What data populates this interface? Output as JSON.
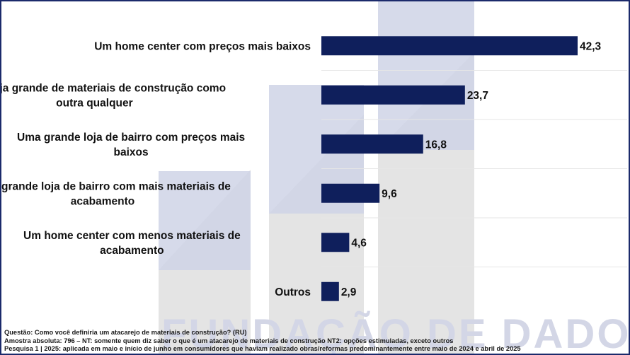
{
  "chart_data": {
    "type": "bar",
    "orientation": "horizontal",
    "categories": [
      "Um home center com preços mais baixos",
      "Uma loja grande de materiais de construção como outra qualquer",
      "Uma grande loja de bairro com preços mais baixos",
      "Uma grande loja de bairro com mais materiais de acabamento",
      "Um home center com menos materiais de acabamento",
      "Outros"
    ],
    "category_lines": [
      [
        "Um home center com preços mais baixos"
      ],
      [
        "Uma loja grande de materiais de construção como",
        "outra qualquer"
      ],
      [
        "Uma grande loja de bairro com preços mais",
        "baixos"
      ],
      [
        "Uma grande loja de bairro com mais materiais de",
        "acabamento"
      ],
      [
        "Um home center com menos materiais de",
        "acabamento"
      ],
      [
        "Outros"
      ]
    ],
    "values": [
      42.3,
      23.7,
      16.8,
      9.6,
      4.6,
      2.9
    ],
    "value_labels": [
      "42,3",
      "23,7",
      "16,8",
      "9,6",
      "4,6",
      "2,9"
    ],
    "xlim": [
      0,
      45
    ],
    "grid": false,
    "bar_color": "#0f1f5c"
  },
  "watermark": {
    "text": "FUNDAÇÃO DE DADOS"
  },
  "footnotes": {
    "question": "Questão: Como você definiria um atacarejo de materiais de construção? (RU)",
    "sample": "Amostra absoluta: 796 – NT: somente quem diz saber o que é um atacarejo de materiais de construção NT2: opções estimuladas, exceto outros",
    "survey": "Pesquisa 1 | 2025: aplicada em maio e início de junho em consumidores que haviam realizado obras/reformas predominantemente entre maio de 2024 e abril de 2025"
  }
}
